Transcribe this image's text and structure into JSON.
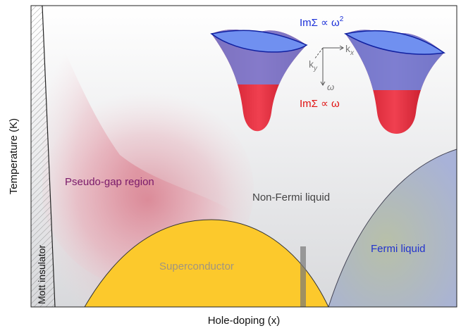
{
  "axes": {
    "y_label": "Temperature (K)",
    "x_label": "Hole-doping (x)"
  },
  "regions": {
    "mott": "Mott insulator",
    "pseudogap": "Pseudo-gap region",
    "non_fermi": "Non-Fermi liquid",
    "superconductor": "Superconductor",
    "fermi": "Fermi liquid"
  },
  "inset": {
    "blue_label": {
      "text": "ImΣ ∝ ω",
      "superscript": "2"
    },
    "red_label": "ImΣ ∝ ω",
    "kx": {
      "base": "k",
      "subscript": "x"
    },
    "ky": {
      "base": "k",
      "subscript": "y"
    },
    "omega": "ω"
  }
}
